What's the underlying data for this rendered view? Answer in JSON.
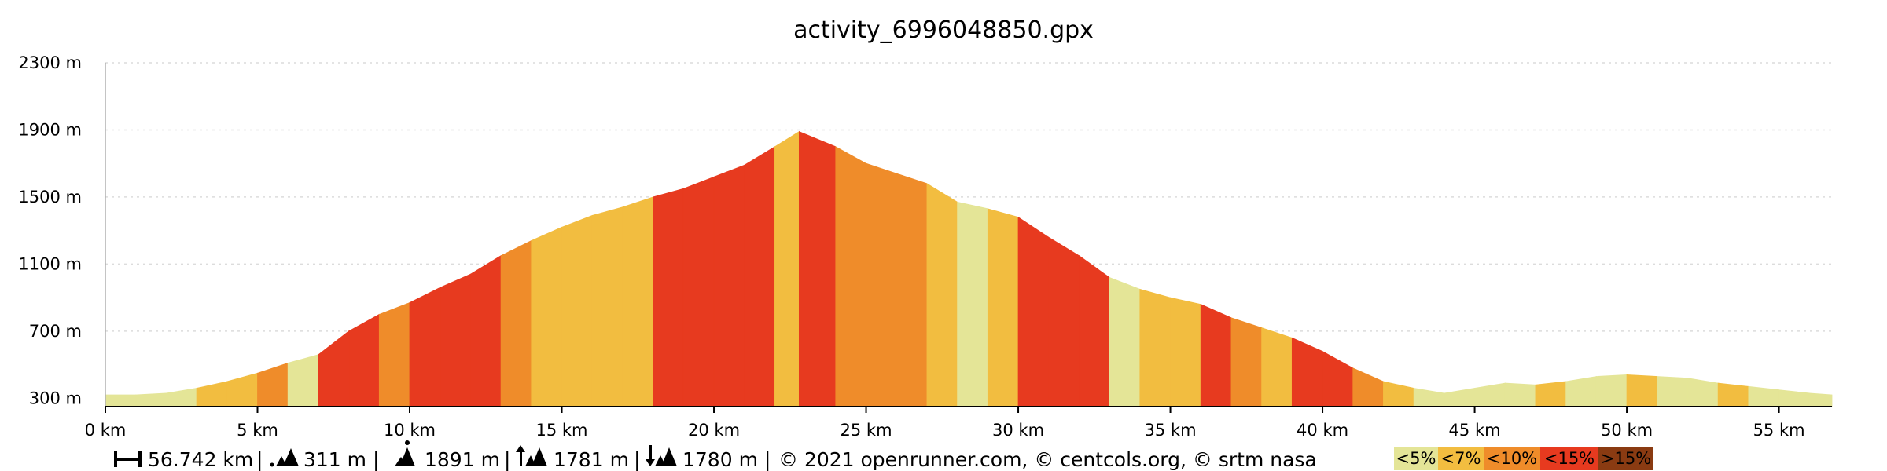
{
  "chart_data": {
    "type": "area",
    "title": "activity_6996048850.gpx",
    "xlabel": "",
    "ylabel": "",
    "x_unit": "km",
    "y_unit": "m",
    "xlim": [
      0,
      56.742
    ],
    "ylim": [
      250,
      2300
    ],
    "x_ticks": [
      0,
      5,
      10,
      15,
      20,
      25,
      30,
      35,
      40,
      45,
      50,
      55
    ],
    "x_tick_labels": [
      "0 km",
      "5 km",
      "10 km",
      "15 km",
      "20 km",
      "25 km",
      "30 km",
      "35 km",
      "40 km",
      "45 km",
      "50 km",
      "55 km"
    ],
    "y_ticks": [
      300,
      700,
      1100,
      1500,
      1900,
      2300
    ],
    "y_tick_labels": [
      "300 m",
      "700 m",
      "1100 m",
      "1500 m",
      "1900 m",
      "2300 m"
    ],
    "grid": true,
    "x": [
      0,
      1,
      2,
      3,
      4,
      5,
      6,
      7,
      8,
      9,
      10,
      11,
      12,
      13,
      14,
      15,
      16,
      17,
      18,
      19,
      20,
      21,
      22,
      22.8,
      24,
      25,
      26,
      27,
      28,
      29,
      30,
      31,
      32,
      33,
      34,
      35,
      36,
      37,
      38,
      39,
      40,
      41,
      42,
      43,
      44,
      45,
      46,
      47,
      48,
      49,
      50,
      51,
      52,
      53,
      54,
      55,
      56,
      56.742
    ],
    "elevation": [
      320,
      320,
      330,
      360,
      400,
      450,
      510,
      560,
      700,
      800,
      870,
      960,
      1040,
      1150,
      1240,
      1320,
      1390,
      1440,
      1500,
      1550,
      1620,
      1690,
      1800,
      1890,
      1800,
      1700,
      1640,
      1580,
      1470,
      1430,
      1380,
      1260,
      1150,
      1020,
      950,
      900,
      860,
      780,
      720,
      660,
      580,
      480,
      400,
      360,
      330,
      360,
      390,
      380,
      400,
      430,
      440,
      430,
      420,
      390,
      370,
      350,
      330,
      320
    ],
    "segment_grade_class": [
      0,
      0,
      0,
      1,
      1,
      2,
      0,
      3,
      3,
      2,
      3,
      3,
      3,
      2,
      1,
      1,
      1,
      1,
      3,
      3,
      3,
      3,
      1,
      3,
      2,
      2,
      2,
      1,
      0,
      1,
      3,
      3,
      3,
      0,
      1,
      1,
      3,
      2,
      1,
      3,
      3,
      2,
      1,
      0,
      0,
      0,
      0,
      1,
      0,
      0,
      1,
      0,
      0,
      1,
      0,
      0,
      0
    ],
    "legend": [
      "<5%",
      "<7%",
      "<10%",
      "<15%",
      ">15%"
    ],
    "legend_colors": [
      "#e4e597",
      "#f2bd40",
      "#ef8c2a",
      "#e73a1f",
      "#8a3b12"
    ],
    "stats": {
      "distance": "56.742 km",
      "min_elevation": "311 m",
      "max_elevation": "1891 m",
      "ascent": "1781 m",
      "descent": "1780 m",
      "attribution": "© 2021 openrunner.com, © centcols.org, © srtm nasa"
    }
  }
}
